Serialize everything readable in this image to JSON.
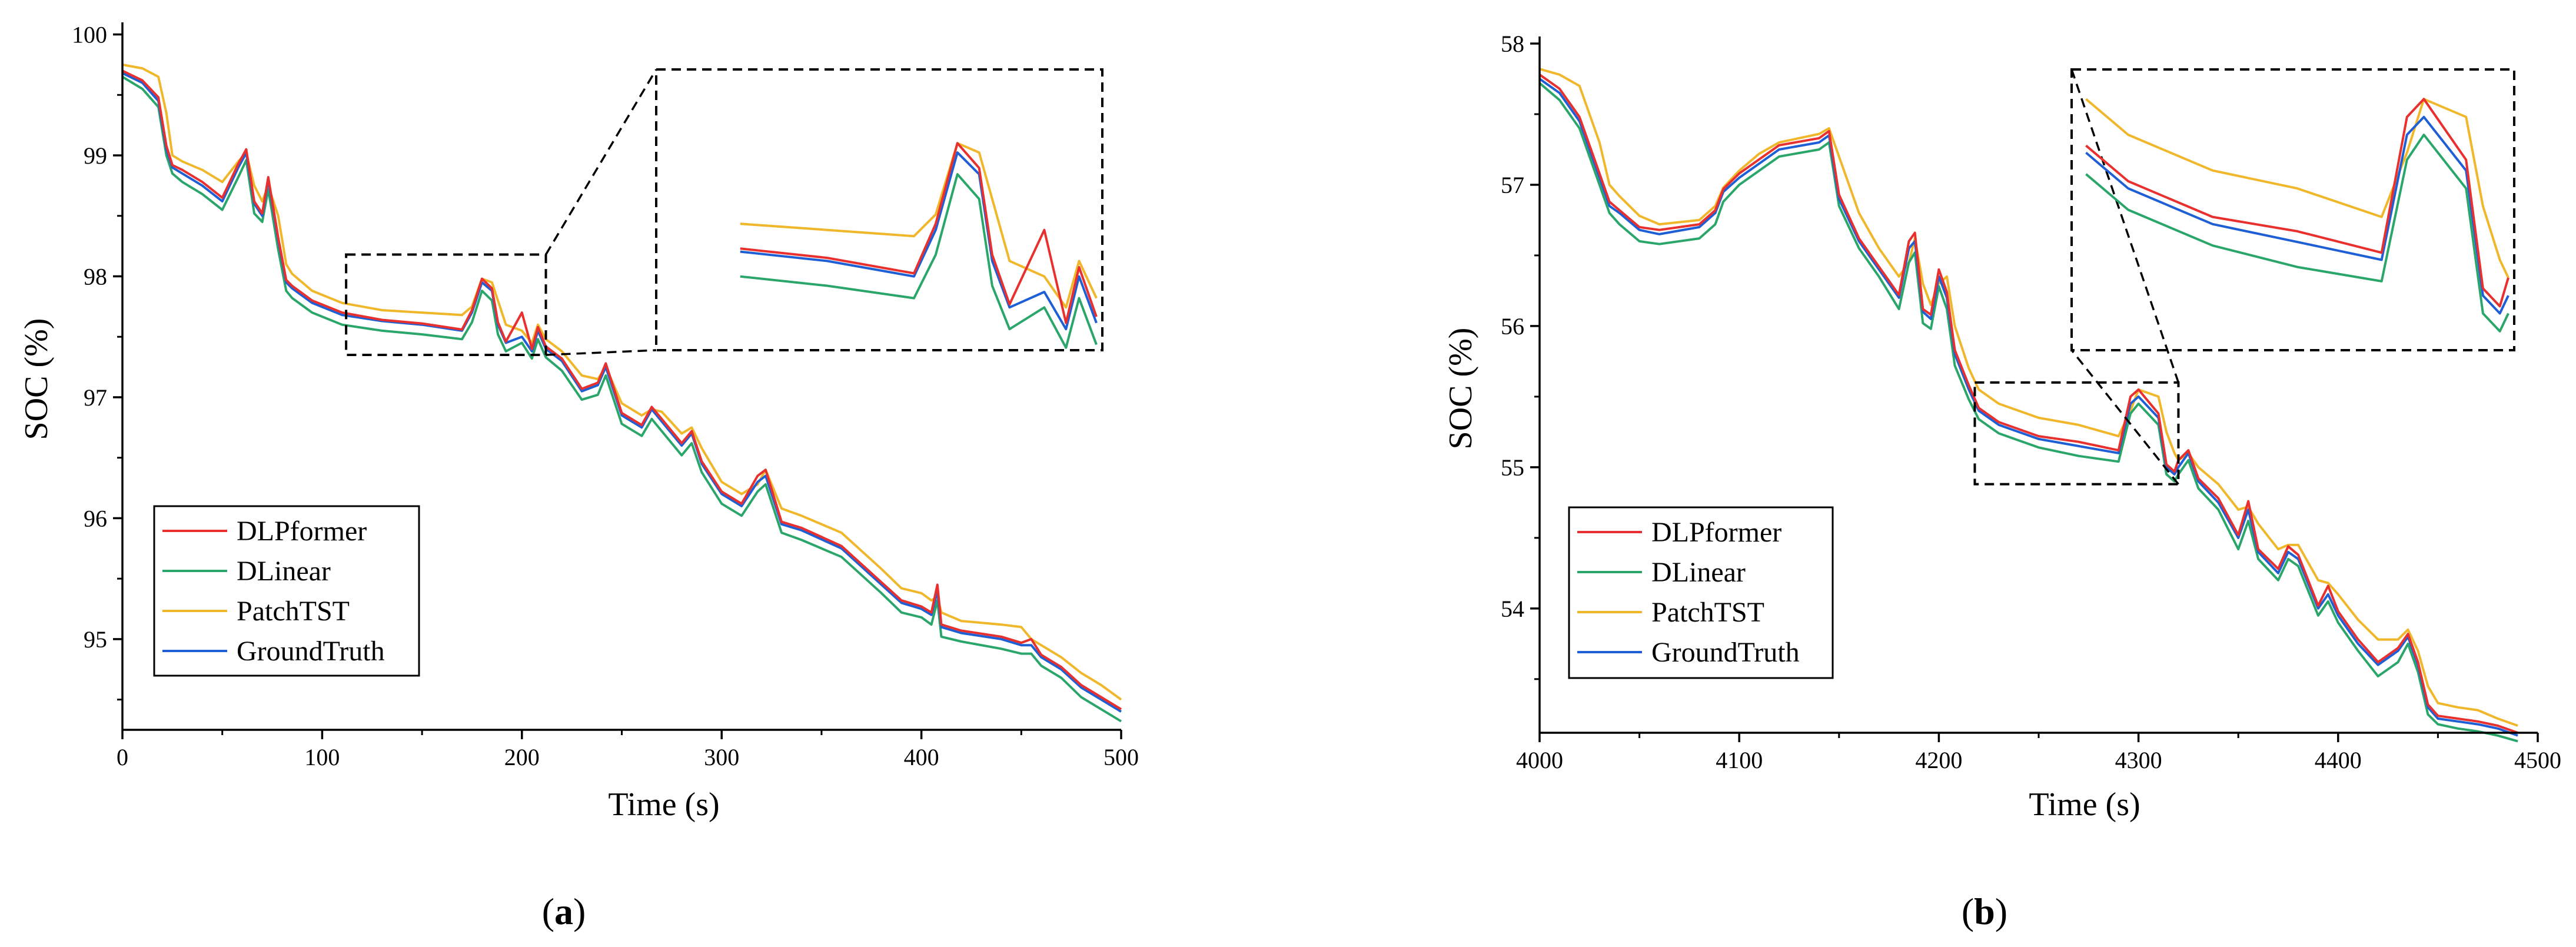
{
  "colors": {
    "DLPformer": "#e8302e",
    "DLinear": "#2aa66a",
    "PatchTST": "#f0b72b",
    "GroundTruth": "#1f5fd6"
  },
  "chart_data": [
    {
      "type": "line",
      "panel_label": "(a)",
      "panel_letter": "a",
      "xlabel": "Time (s)",
      "ylabel": "SOC (%)",
      "xlim": [
        0,
        500
      ],
      "ylim": [
        94.25,
        100.1
      ],
      "xticks": [
        0,
        100,
        200,
        300,
        400,
        500
      ],
      "xtick_labels": [
        "0",
        "100",
        "200",
        "300",
        "400",
        "500"
      ],
      "yticks": [
        95,
        96,
        97,
        98,
        99,
        100
      ],
      "ytick_labels": [
        "95",
        "96",
        "97",
        "98",
        "99",
        "100"
      ],
      "legend": [
        "DLPformer",
        "DLinear",
        "PatchTST",
        "GroundTruth"
      ],
      "legend_position": "bottom-left",
      "inset": {
        "x_range": [
          112,
          212
        ],
        "y_range": [
          97.35,
          98.18
        ]
      },
      "x": [
        0,
        10,
        18,
        22,
        25,
        30,
        40,
        50,
        58,
        62,
        66,
        70,
        73,
        78,
        82,
        85,
        95,
        110,
        130,
        150,
        170,
        175,
        180,
        185,
        188,
        192,
        200,
        205,
        208,
        212,
        220,
        230,
        238,
        242,
        250,
        260,
        265,
        270,
        280,
        285,
        290,
        300,
        310,
        318,
        322,
        330,
        340,
        360,
        380,
        390,
        400,
        405,
        408,
        410,
        420,
        440,
        450,
        455,
        460,
        470,
        480,
        490,
        500
      ],
      "series": [
        {
          "name": "GroundTruth",
          "values": [
            99.68,
            99.6,
            99.45,
            99.05,
            98.9,
            98.85,
            98.75,
            98.62,
            98.9,
            99.02,
            98.6,
            98.5,
            98.8,
            98.3,
            97.95,
            97.9,
            97.78,
            97.68,
            97.63,
            97.6,
            97.55,
            97.7,
            97.95,
            97.88,
            97.6,
            97.45,
            97.5,
            97.38,
            97.55,
            97.4,
            97.3,
            97.05,
            97.1,
            97.25,
            96.85,
            96.75,
            96.9,
            96.8,
            96.6,
            96.7,
            96.45,
            96.2,
            96.1,
            96.3,
            96.35,
            95.95,
            95.9,
            95.75,
            95.45,
            95.3,
            95.25,
            95.2,
            95.4,
            95.1,
            95.05,
            95.0,
            94.95,
            94.95,
            94.85,
            94.75,
            94.6,
            94.5,
            94.4
          ]
        },
        {
          "name": "DLPformer",
          "values": [
            99.7,
            99.62,
            99.48,
            99.08,
            98.92,
            98.88,
            98.78,
            98.65,
            98.93,
            99.05,
            98.62,
            98.52,
            98.82,
            98.32,
            97.97,
            97.92,
            97.8,
            97.7,
            97.64,
            97.61,
            97.56,
            97.72,
            97.98,
            97.9,
            97.62,
            97.46,
            97.7,
            97.4,
            97.58,
            97.42,
            97.32,
            97.07,
            97.12,
            97.28,
            96.87,
            96.77,
            96.92,
            96.82,
            96.62,
            96.72,
            96.47,
            96.22,
            96.12,
            96.35,
            96.4,
            95.97,
            95.92,
            95.77,
            95.47,
            95.32,
            95.27,
            95.22,
            95.45,
            95.12,
            95.07,
            95.02,
            94.97,
            95.0,
            94.87,
            94.77,
            94.62,
            94.52,
            94.42
          ]
        },
        {
          "name": "DLinear",
          "values": [
            99.65,
            99.55,
            99.4,
            99.0,
            98.85,
            98.78,
            98.68,
            98.55,
            98.82,
            98.96,
            98.52,
            98.45,
            98.72,
            98.22,
            97.88,
            97.82,
            97.7,
            97.6,
            97.55,
            97.52,
            97.48,
            97.62,
            97.88,
            97.8,
            97.52,
            97.38,
            97.45,
            97.32,
            97.48,
            97.33,
            97.22,
            96.98,
            97.02,
            97.18,
            96.78,
            96.68,
            96.82,
            96.72,
            96.52,
            96.62,
            96.38,
            96.12,
            96.02,
            96.22,
            96.28,
            95.88,
            95.82,
            95.68,
            95.38,
            95.22,
            95.18,
            95.12,
            95.32,
            95.02,
            94.98,
            94.92,
            94.88,
            94.88,
            94.78,
            94.68,
            94.52,
            94.42,
            94.32
          ]
        },
        {
          "name": "PatchTST",
          "values": [
            99.75,
            99.72,
            99.65,
            99.35,
            99.0,
            98.95,
            98.88,
            98.78,
            98.95,
            99.02,
            98.75,
            98.62,
            98.75,
            98.5,
            98.1,
            98.02,
            97.88,
            97.78,
            97.72,
            97.7,
            97.68,
            97.75,
            97.98,
            97.95,
            97.8,
            97.6,
            97.55,
            97.45,
            97.6,
            97.48,
            97.38,
            97.18,
            97.15,
            97.25,
            96.95,
            96.85,
            96.9,
            96.88,
            96.7,
            96.75,
            96.58,
            96.3,
            96.2,
            96.28,
            96.4,
            96.08,
            96.02,
            95.88,
            95.58,
            95.42,
            95.38,
            95.32,
            95.35,
            95.22,
            95.15,
            95.12,
            95.1,
            95.0,
            94.95,
            94.85,
            94.72,
            94.62,
            94.5
          ]
        }
      ]
    },
    {
      "type": "line",
      "panel_label": "(b)",
      "panel_letter": "b",
      "xlabel": "Time (s)",
      "ylabel": "SOC (%)",
      "xlim": [
        4000,
        4500
      ],
      "ylim": [
        53.12,
        58.05
      ],
      "xticks": [
        4000,
        4100,
        4200,
        4300,
        4400,
        4500
      ],
      "xtick_labels": [
        "4000",
        "4100",
        "4200",
        "4300",
        "4400",
        "4500"
      ],
      "yticks": [
        54,
        55,
        56,
        57,
        58
      ],
      "ytick_labels": [
        "54",
        "55",
        "56",
        "57",
        "58"
      ],
      "legend": [
        "DLPformer",
        "DLinear",
        "PatchTST",
        "GroundTruth"
      ],
      "legend_position": "bottom-left",
      "inset": {
        "x_range": [
          4218,
          4320
        ],
        "y_range": [
          54.88,
          55.6
        ]
      },
      "x": [
        4000,
        4010,
        4020,
        4030,
        4035,
        4040,
        4050,
        4060,
        4080,
        4088,
        4092,
        4100,
        4110,
        4120,
        4140,
        4145,
        4150,
        4160,
        4170,
        4180,
        4185,
        4188,
        4192,
        4196,
        4200,
        4204,
        4208,
        4215,
        4220,
        4230,
        4250,
        4270,
        4290,
        4296,
        4300,
        4310,
        4314,
        4318,
        4320,
        4325,
        4330,
        4340,
        4350,
        4355,
        4360,
        4370,
        4375,
        4380,
        4390,
        4395,
        4400,
        4410,
        4420,
        4430,
        4435,
        4440,
        4445,
        4450,
        4460,
        4470,
        4480,
        4490
      ],
      "series": [
        {
          "name": "GroundTruth",
          "values": [
            57.75,
            57.65,
            57.45,
            57.05,
            56.85,
            56.8,
            56.68,
            56.65,
            56.7,
            56.8,
            56.95,
            57.05,
            57.15,
            57.25,
            57.3,
            57.35,
            56.9,
            56.6,
            56.4,
            56.2,
            56.55,
            56.6,
            56.1,
            56.05,
            56.35,
            56.2,
            55.8,
            55.55,
            55.4,
            55.3,
            55.2,
            55.15,
            55.1,
            55.45,
            55.5,
            55.35,
            55.0,
            54.95,
            55.0,
            55.1,
            54.9,
            54.75,
            54.5,
            54.7,
            54.4,
            54.25,
            54.4,
            54.35,
            54.0,
            54.1,
            53.95,
            53.75,
            53.6,
            53.7,
            53.8,
            53.6,
            53.3,
            53.22,
            53.2,
            53.18,
            53.15,
            53.1
          ]
        },
        {
          "name": "DLPformer",
          "values": [
            57.78,
            57.68,
            57.48,
            57.08,
            56.88,
            56.82,
            56.7,
            56.68,
            56.72,
            56.82,
            56.97,
            57.08,
            57.18,
            57.28,
            57.33,
            57.38,
            56.93,
            56.62,
            56.42,
            56.22,
            56.6,
            56.66,
            56.12,
            56.08,
            56.4,
            56.24,
            55.83,
            55.58,
            55.42,
            55.32,
            55.22,
            55.18,
            55.12,
            55.5,
            55.55,
            55.38,
            55.02,
            54.97,
            55.05,
            55.12,
            54.92,
            54.78,
            54.52,
            54.76,
            54.42,
            54.28,
            54.44,
            54.38,
            54.02,
            54.16,
            53.98,
            53.78,
            53.62,
            53.72,
            53.82,
            53.62,
            53.32,
            53.24,
            53.22,
            53.2,
            53.17,
            53.12
          ]
        },
        {
          "name": "DLinear",
          "values": [
            57.72,
            57.6,
            57.4,
            57.0,
            56.8,
            56.72,
            56.6,
            56.58,
            56.62,
            56.72,
            56.88,
            57.0,
            57.1,
            57.2,
            57.25,
            57.3,
            56.85,
            56.55,
            56.35,
            56.12,
            56.45,
            56.52,
            56.02,
            55.98,
            56.28,
            56.12,
            55.72,
            55.48,
            55.34,
            55.24,
            55.14,
            55.08,
            55.04,
            55.38,
            55.45,
            55.3,
            54.95,
            54.9,
            54.95,
            55.05,
            54.85,
            54.7,
            54.42,
            54.62,
            54.35,
            54.2,
            54.35,
            54.3,
            53.95,
            54.05,
            53.9,
            53.7,
            53.52,
            53.62,
            53.75,
            53.55,
            53.25,
            53.18,
            53.15,
            53.13,
            53.1,
            53.06
          ]
        },
        {
          "name": "PatchTST",
          "values": [
            57.82,
            57.78,
            57.7,
            57.3,
            57.0,
            56.92,
            56.78,
            56.72,
            56.75,
            56.85,
            56.98,
            57.1,
            57.22,
            57.3,
            57.36,
            57.4,
            57.2,
            56.8,
            56.55,
            56.35,
            56.45,
            56.62,
            56.3,
            56.15,
            56.3,
            56.35,
            56.0,
            55.7,
            55.55,
            55.45,
            55.35,
            55.3,
            55.22,
            55.4,
            55.55,
            55.5,
            55.25,
            55.1,
            55.05,
            55.1,
            55.0,
            54.88,
            54.7,
            54.72,
            54.6,
            54.42,
            54.45,
            54.45,
            54.2,
            54.18,
            54.1,
            53.92,
            53.78,
            53.78,
            53.85,
            53.7,
            53.45,
            53.33,
            53.3,
            53.28,
            53.22,
            53.17
          ]
        }
      ]
    }
  ]
}
